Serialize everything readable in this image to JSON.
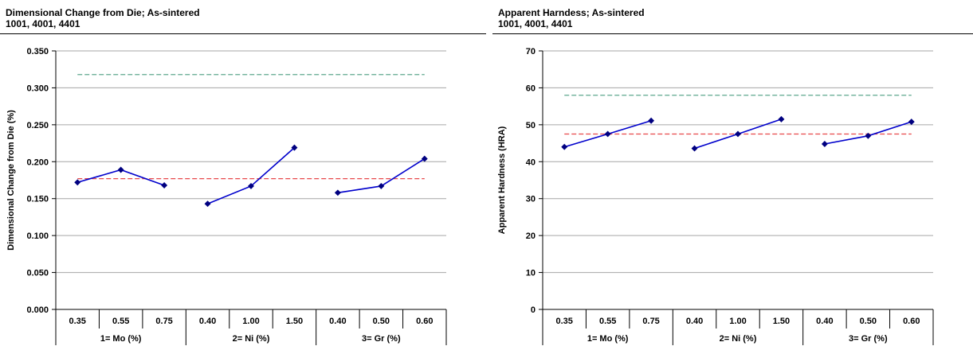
{
  "charts": [
    {
      "title_line1": "Dimensional Change from Die; As-sintered",
      "title_line2": "1001, 4001, 4401"
    },
    {
      "title_line1": "Apparent Harndess; As-sintered",
      "title_line2": "1001, 4001, 4401"
    }
  ],
  "chart_data": [
    {
      "type": "line",
      "title": "Dimensional Change from Die; As-sintered 1001, 4001, 4401",
      "ylabel": "Dimensional Change from Die (%)",
      "ylim": [
        0.0,
        0.35
      ],
      "yticks": [
        "0.000",
        "0.050",
        "0.100",
        "0.150",
        "0.200",
        "0.250",
        "0.300",
        "0.350"
      ],
      "grid": true,
      "groups": [
        {
          "label": "1= Mo (%)",
          "categories": [
            "0.35",
            "0.55",
            "0.75"
          ],
          "values": [
            0.172,
            0.189,
            0.168
          ]
        },
        {
          "label": "2= Ni (%)",
          "categories": [
            "0.40",
            "1.00",
            "1.50"
          ],
          "values": [
            0.143,
            0.167,
            0.219
          ]
        },
        {
          "label": "3= Gr (%)",
          "categories": [
            "0.40",
            "0.50",
            "0.60"
          ],
          "values": [
            0.158,
            0.167,
            0.204
          ]
        }
      ],
      "reference_lines": [
        {
          "value": 0.318,
          "color": "#5fa88e"
        },
        {
          "value": 0.177,
          "color": "#e8484a"
        }
      ],
      "series_color": "#0000cc",
      "marker_color": "#000080"
    },
    {
      "type": "line",
      "title": "Apparent Harndess; As-sintered 1001, 4001, 4401",
      "ylabel": "Apparent Hardness (HRA)",
      "ylim": [
        0,
        70
      ],
      "yticks": [
        "0",
        "10",
        "20",
        "30",
        "40",
        "50",
        "60",
        "70"
      ],
      "grid": true,
      "groups": [
        {
          "label": "1= Mo (%)",
          "categories": [
            "0.35",
            "0.55",
            "0.75"
          ],
          "values": [
            44.0,
            47.5,
            51.1
          ]
        },
        {
          "label": "2= Ni (%)",
          "categories": [
            "0.40",
            "1.00",
            "1.50"
          ],
          "values": [
            43.6,
            47.5,
            51.5
          ]
        },
        {
          "label": "3= Gr (%)",
          "categories": [
            "0.40",
            "0.50",
            "0.60"
          ],
          "values": [
            44.8,
            47.0,
            50.8
          ]
        }
      ],
      "reference_lines": [
        {
          "value": 58.0,
          "color": "#5fa88e"
        },
        {
          "value": 47.5,
          "color": "#e8484a"
        }
      ],
      "series_color": "#0000cc",
      "marker_color": "#000080"
    }
  ]
}
